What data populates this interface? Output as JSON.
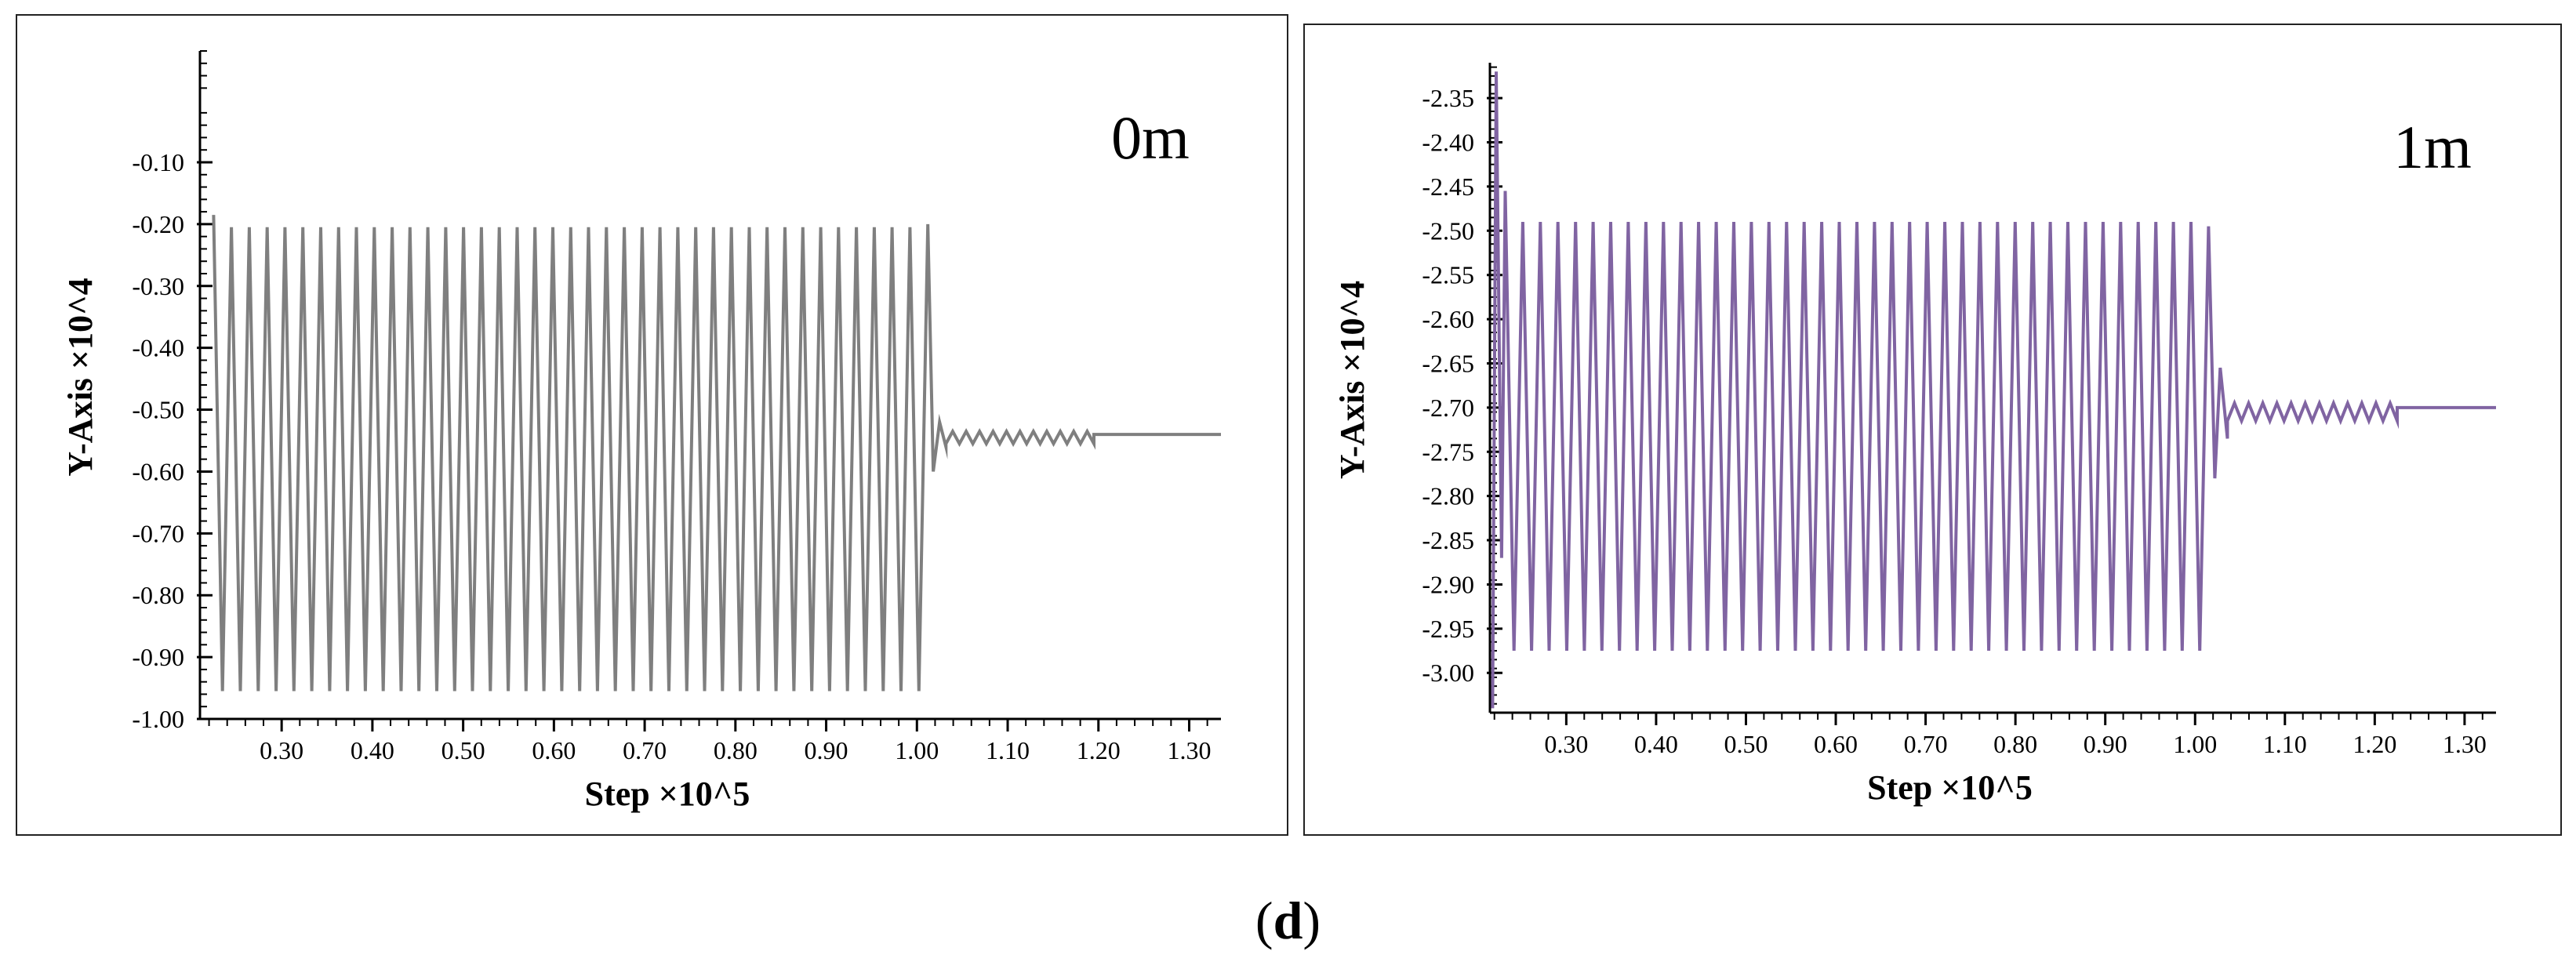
{
  "figure": {
    "caption_open": "(",
    "caption_letter": "d",
    "caption_close": ")"
  },
  "chart_data": [
    {
      "type": "line",
      "panel_label": "0m",
      "xlabel": "Step ×10^5",
      "ylabel": "Y-Axis ×10^4",
      "xlim": [
        0.21,
        1.335
      ],
      "ylim": [
        -1.0,
        0.08
      ],
      "xticks": [
        0.3,
        0.4,
        0.5,
        0.6,
        0.7,
        0.8,
        0.9,
        1.0,
        1.1,
        1.2,
        1.3
      ],
      "xtick_labels": [
        "0.30",
        "0.40",
        "0.50",
        "0.60",
        "0.70",
        "0.80",
        "0.90",
        "1.00",
        "1.10",
        "1.20",
        "1.30"
      ],
      "yticks": [
        -0.1,
        -0.2,
        -0.3,
        -0.4,
        -0.5,
        -0.6,
        -0.7,
        -0.8,
        -0.9,
        -1.0
      ],
      "ytick_labels": [
        "-0.10",
        "-0.20",
        "-0.30",
        "-0.40",
        "-0.50",
        "-0.60",
        "-0.70",
        "-0.80",
        "-0.90",
        "-1.00"
      ],
      "minor_per_major_x": 5,
      "minor_per_major_y": 5,
      "grid": false,
      "line_color": "#7f7f7f",
      "series": [
        {
          "name": "0m",
          "oscillation": {
            "x_start": 0.225,
            "x_end": 1.012,
            "cycles": 40,
            "high": -0.205,
            "low": -0.955,
            "first_high": -0.185
          },
          "transition": [
            [
              1.012,
              -0.2
            ],
            [
              1.018,
              -0.6
            ],
            [
              1.025,
              -0.52
            ],
            [
              1.032,
              -0.56
            ]
          ],
          "ringdown": {
            "x_start": 1.032,
            "x_end": 1.195,
            "center": -0.545,
            "amplitude": 0.01,
            "steps": 22
          },
          "settled": [
            [
              1.195,
              -0.54
            ],
            [
              1.335,
              -0.54
            ]
          ]
        }
      ]
    },
    {
      "type": "line",
      "panel_label": "1m",
      "xlabel": "Step ×10^5",
      "ylabel": "Y-Axis ×10^4",
      "xlim": [
        0.215,
        1.335
      ],
      "ylim": [
        -3.045,
        -2.31
      ],
      "xticks": [
        0.3,
        0.4,
        0.5,
        0.6,
        0.7,
        0.8,
        0.9,
        1.0,
        1.1,
        1.2,
        1.3
      ],
      "xtick_labels": [
        "0.30",
        "0.40",
        "0.50",
        "0.60",
        "0.70",
        "0.80",
        "0.90",
        "1.00",
        "1.10",
        "1.20",
        "1.30"
      ],
      "yticks": [
        -2.35,
        -2.4,
        -2.45,
        -2.5,
        -2.55,
        -2.6,
        -2.65,
        -2.7,
        -2.75,
        -2.8,
        -2.85,
        -2.9,
        -2.95,
        -3.0
      ],
      "ytick_labels": [
        "-2.35",
        "-2.40",
        "-2.45",
        "-2.50",
        "-2.55",
        "-2.60",
        "-2.65",
        "-2.70",
        "-2.75",
        "-2.80",
        "-2.85",
        "-2.90",
        "-2.95",
        "-3.00"
      ],
      "minor_per_major_x": 5,
      "minor_per_major_y": 5,
      "grid": false,
      "line_color": "#8064a2",
      "series": [
        {
          "name": "1m",
          "start": [
            [
              0.218,
              -3.04
            ],
            [
              0.222,
              -2.32
            ],
            [
              0.228,
              -2.87
            ],
            [
              0.232,
              -2.455
            ]
          ],
          "oscillation": {
            "x_start": 0.232,
            "x_end": 1.015,
            "cycles": 40,
            "high": -2.49,
            "low": -2.975,
            "first_high": -2.455
          },
          "transition": [
            [
              1.015,
              -2.495
            ],
            [
              1.022,
              -2.78
            ],
            [
              1.028,
              -2.655
            ],
            [
              1.036,
              -2.735
            ]
          ],
          "ringdown": {
            "x_start": 1.036,
            "x_end": 1.225,
            "center": -2.705,
            "amplitude": 0.01,
            "steps": 24
          },
          "settled": [
            [
              1.225,
              -2.7
            ],
            [
              1.335,
              -2.7
            ]
          ]
        }
      ]
    }
  ]
}
